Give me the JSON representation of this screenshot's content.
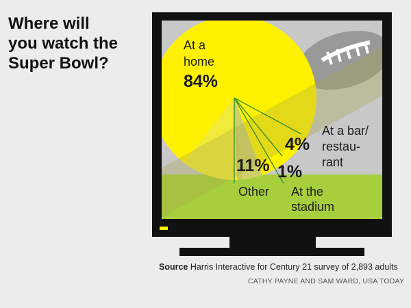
{
  "chart_data": {
    "type": "pie",
    "title": "Where will\nyou watch the\nSuper Bowl?",
    "slices": [
      {
        "line1": "At a",
        "line2": "home",
        "line3": "",
        "value": 84,
        "label": "84%",
        "color": "#fff200"
      },
      {
        "line1": "At a bar/",
        "line2": "restau-",
        "line3": "rant",
        "value": 4,
        "label": "4%",
        "color": "#cfd06a"
      },
      {
        "line1": "At the",
        "line2": "stadium",
        "line3": "",
        "value": 1,
        "label": "1%",
        "color": "#c8ca5e"
      },
      {
        "line1": "Other",
        "line2": "",
        "line3": "",
        "value": 11,
        "label": "11%",
        "color": "#f2ea3a"
      }
    ],
    "colors": {
      "tv_frame": "#111111",
      "screen_gray": "#c8c8c8",
      "screen_green": "#a7cf3d",
      "leader_line": "#3a8f2a",
      "football": "#999999"
    }
  },
  "source": {
    "label": "Source",
    "text": "Harris Interactive for Century 21 survey of 2,893 adults"
  },
  "credit": "CATHY PAYNE AND SAM WARD, USA TODAY"
}
